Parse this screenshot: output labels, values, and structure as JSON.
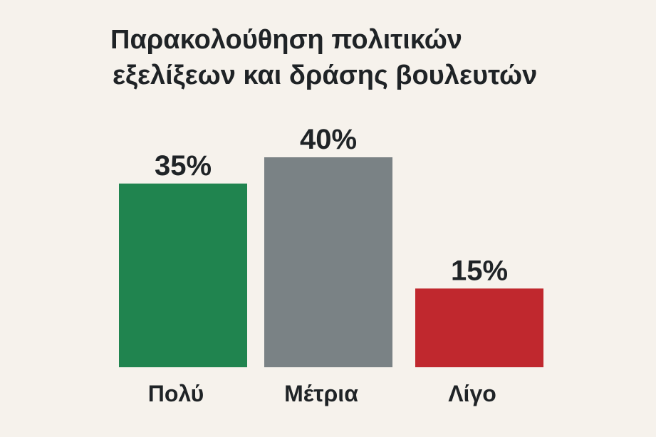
{
  "chart_data": {
    "type": "bar",
    "title_lines": [
      "Παρακολούθηση πολιτικών",
      "εξελίξεων και δράσης βουλευτών"
    ],
    "categories": [
      "Πολύ",
      "Μέτρια",
      "Λίγο"
    ],
    "values": [
      35,
      40,
      15
    ],
    "value_labels": [
      "35%",
      "40%",
      "15%"
    ],
    "colors": [
      "#20844f",
      "#7a8285",
      "#c0282e"
    ],
    "ylim": [
      0,
      64
    ],
    "grid": false,
    "legend": "none"
  }
}
